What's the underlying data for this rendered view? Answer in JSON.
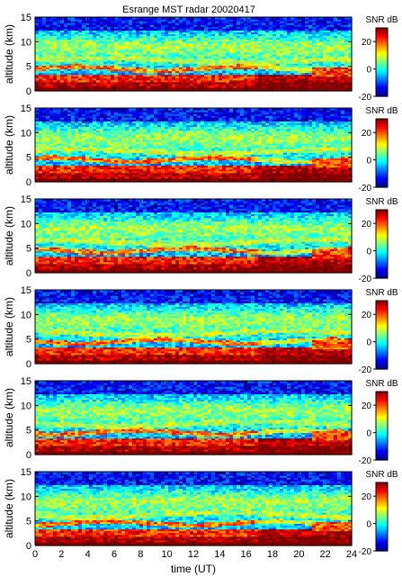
{
  "title": "Esrange MST radar 20020417",
  "xlabel": "time (UT)",
  "ylabel": "altitude (km)",
  "colorbar_label": "SNR dB",
  "chart_data": [
    {
      "type": "heatmap",
      "panel": 1,
      "x_ticks": [
        0,
        2,
        4,
        6,
        8,
        10,
        12,
        14,
        16,
        18,
        20,
        22,
        24
      ],
      "y_ticks": [
        0,
        5,
        10,
        15
      ],
      "xlim": [
        0,
        24
      ],
      "ylim": [
        0,
        15
      ],
      "colorbar_ticks": [
        20,
        0,
        -20
      ],
      "colorbar_range": [
        -20,
        30
      ],
      "colormap": "jet"
    },
    {
      "type": "heatmap",
      "panel": 2,
      "x_ticks": [
        0,
        2,
        4,
        6,
        8,
        10,
        12,
        14,
        16,
        18,
        20,
        22,
        24
      ],
      "y_ticks": [
        0,
        5,
        10,
        15
      ],
      "xlim": [
        0,
        24
      ],
      "ylim": [
        0,
        15
      ],
      "colorbar_ticks": [
        20,
        0,
        -20
      ],
      "colorbar_range": [
        -20,
        30
      ],
      "colormap": "jet"
    },
    {
      "type": "heatmap",
      "panel": 3,
      "x_ticks": [
        0,
        2,
        4,
        6,
        8,
        10,
        12,
        14,
        16,
        18,
        20,
        22,
        24
      ],
      "y_ticks": [
        0,
        5,
        10,
        15
      ],
      "xlim": [
        0,
        24
      ],
      "ylim": [
        0,
        15
      ],
      "colorbar_ticks": [
        20,
        0,
        -20
      ],
      "colorbar_range": [
        -20,
        30
      ],
      "colormap": "jet"
    },
    {
      "type": "heatmap",
      "panel": 4,
      "x_ticks": [
        0,
        2,
        4,
        6,
        8,
        10,
        12,
        14,
        16,
        18,
        20,
        22,
        24
      ],
      "y_ticks": [
        0,
        5,
        10,
        15
      ],
      "xlim": [
        0,
        24
      ],
      "ylim": [
        0,
        15
      ],
      "colorbar_ticks": [
        20,
        0,
        -20
      ],
      "colorbar_range": [
        -20,
        30
      ],
      "colormap": "jet"
    },
    {
      "type": "heatmap",
      "panel": 5,
      "x_ticks": [
        0,
        2,
        4,
        6,
        8,
        10,
        12,
        14,
        16,
        18,
        20,
        22,
        24
      ],
      "y_ticks": [
        0,
        5,
        10,
        15
      ],
      "xlim": [
        0,
        24
      ],
      "ylim": [
        0,
        15
      ],
      "colorbar_ticks": [
        20,
        0,
        -20
      ],
      "colorbar_range": [
        -20,
        30
      ],
      "colormap": "jet"
    },
    {
      "type": "heatmap",
      "panel": 6,
      "x_ticks": [
        0,
        2,
        4,
        6,
        8,
        10,
        12,
        14,
        16,
        18,
        20,
        22,
        24
      ],
      "y_ticks": [
        0,
        5,
        10,
        15
      ],
      "xlim": [
        0,
        24
      ],
      "ylim": [
        0,
        15
      ],
      "colorbar_ticks": [
        20,
        0,
        -20
      ],
      "colorbar_range": [
        -20,
        30
      ],
      "colormap": "jet"
    }
  ]
}
